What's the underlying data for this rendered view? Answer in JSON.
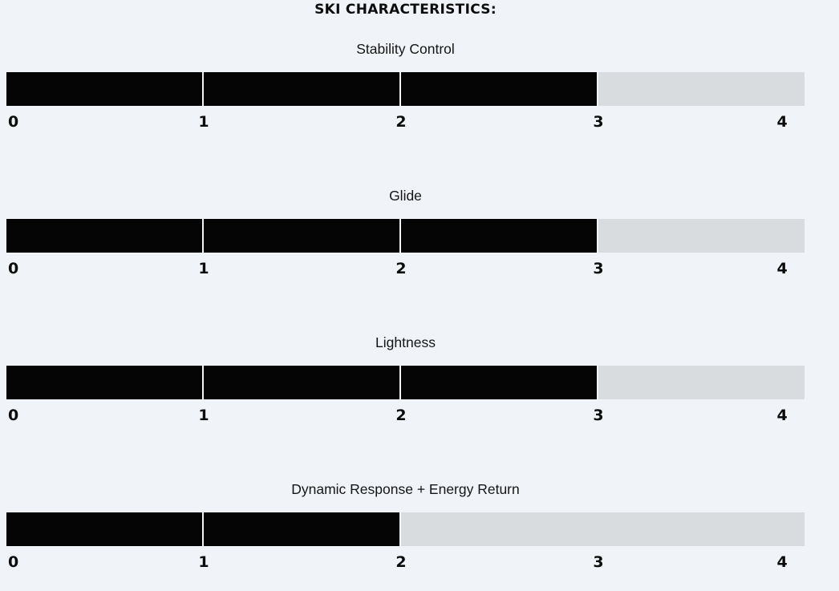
{
  "title": "SKI CHARACTERISTICS:",
  "colors": {
    "background": "#f0f4f8",
    "bar_fill": "#050505",
    "bar_track": "#d9dcde",
    "segment_divider": "#f0f4f8",
    "text": "#0d0d0d"
  },
  "charts": [
    {
      "label": "Stability Control",
      "value": 3,
      "max": 4,
      "ticks": [
        "0",
        "1",
        "2",
        "3",
        "4"
      ]
    },
    {
      "label": "Glide",
      "value": 3,
      "max": 4,
      "ticks": [
        "0",
        "1",
        "2",
        "3",
        "4"
      ]
    },
    {
      "label": "Lightness",
      "value": 3,
      "max": 4,
      "ticks": [
        "0",
        "1",
        "2",
        "3",
        "4"
      ]
    },
    {
      "label": "Dynamic Response + Energy Return",
      "value": 2,
      "max": 4,
      "ticks": [
        "0",
        "1",
        "2",
        "3",
        "4"
      ]
    }
  ],
  "chart_data": [
    {
      "type": "bar",
      "orientation": "horizontal",
      "title": "Stability Control",
      "categories": [
        "Stability Control"
      ],
      "values": [
        3
      ],
      "xlim": [
        0,
        4
      ],
      "xticks": [
        0,
        1,
        2,
        3,
        4
      ],
      "grid": false,
      "legend": "none"
    },
    {
      "type": "bar",
      "orientation": "horizontal",
      "title": "Glide",
      "categories": [
        "Glide"
      ],
      "values": [
        3
      ],
      "xlim": [
        0,
        4
      ],
      "xticks": [
        0,
        1,
        2,
        3,
        4
      ],
      "grid": false,
      "legend": "none"
    },
    {
      "type": "bar",
      "orientation": "horizontal",
      "title": "Lightness",
      "categories": [
        "Lightness"
      ],
      "values": [
        3
      ],
      "xlim": [
        0,
        4
      ],
      "xticks": [
        0,
        1,
        2,
        3,
        4
      ],
      "grid": false,
      "legend": "none"
    },
    {
      "type": "bar",
      "orientation": "horizontal",
      "title": "Dynamic Response + Energy Return",
      "categories": [
        "Dynamic Response + Energy Return"
      ],
      "values": [
        2
      ],
      "xlim": [
        0,
        4
      ],
      "xticks": [
        0,
        1,
        2,
        3,
        4
      ],
      "grid": false,
      "legend": "none"
    }
  ]
}
